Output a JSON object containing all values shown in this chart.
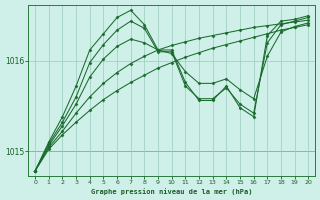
{
  "background_color": "#cff0e8",
  "plot_bg_color": "#cff0e8",
  "grid_color": "#99ccbb",
  "line_color": "#1a6b2e",
  "marker_color": "#1a6b2e",
  "xlabel": "Graphe pression niveau de la mer (hPa)",
  "ylim": [
    1014.72,
    1016.62
  ],
  "xlim": [
    -0.5,
    20.5
  ],
  "yticks": [
    1015,
    1016
  ],
  "xticks": [
    0,
    1,
    2,
    3,
    4,
    5,
    6,
    7,
    8,
    9,
    10,
    11,
    12,
    13,
    14,
    15,
    16,
    17,
    18,
    19,
    20
  ],
  "hline_y": 1015,
  "hline_color": "#cc4444",
  "series": [
    [
      1014.78,
      1015.02,
      1015.18,
      1015.32,
      1015.45,
      1015.57,
      1015.67,
      1015.76,
      1015.84,
      1015.92,
      1015.98,
      1016.04,
      1016.09,
      1016.14,
      1016.18,
      1016.22,
      1016.26,
      1016.3,
      1016.34,
      1016.37,
      1016.4
    ],
    [
      1014.78,
      1015.04,
      1015.22,
      1015.42,
      1015.6,
      1015.75,
      1015.87,
      1015.97,
      1016.05,
      1016.12,
      1016.17,
      1016.21,
      1016.25,
      1016.28,
      1016.31,
      1016.34,
      1016.37,
      1016.39,
      1016.41,
      1016.43,
      1016.45
    ],
    [
      1014.78,
      1015.06,
      1015.28,
      1015.52,
      1015.82,
      1016.02,
      1016.16,
      1016.24,
      1016.2,
      1016.12,
      1016.08,
      1015.88,
      1015.75,
      1015.75,
      1015.8,
      1015.68,
      1015.58,
      1016.05,
      1016.32,
      1016.38,
      1016.42
    ],
    [
      1014.78,
      1015.08,
      1015.32,
      1015.6,
      1015.98,
      1016.18,
      1016.34,
      1016.44,
      1016.36,
      1016.1,
      1016.1,
      1015.72,
      1015.58,
      1015.58,
      1015.7,
      1015.52,
      1015.42,
      1016.2,
      1016.4,
      1016.44,
      1016.48
    ],
    [
      1014.78,
      1015.1,
      1015.38,
      1015.72,
      1016.12,
      1016.3,
      1016.48,
      1016.56,
      1016.4,
      1016.12,
      1016.12,
      1015.76,
      1015.56,
      1015.56,
      1015.72,
      1015.48,
      1015.38,
      1016.28,
      1016.44,
      1016.46,
      1016.5
    ]
  ]
}
